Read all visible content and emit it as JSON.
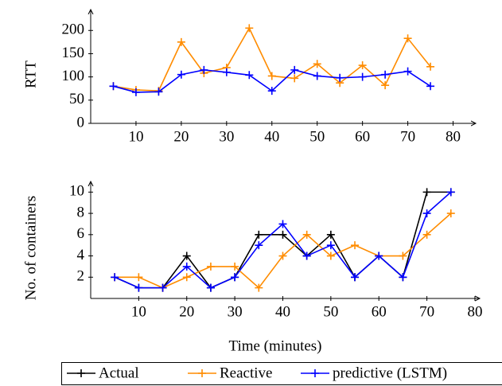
{
  "chart_data": [
    {
      "type": "line",
      "ylabel": "RTT",
      "x": [
        5,
        10,
        15,
        20,
        25,
        30,
        35,
        40,
        45,
        50,
        55,
        60,
        65,
        70,
        75
      ],
      "series": [
        {
          "name": "Reactive",
          "color": "#ff8c00",
          "values": [
            80,
            72,
            70,
            175,
            108,
            120,
            205,
            102,
            97,
            128,
            87,
            125,
            82,
            183,
            122
          ]
        },
        {
          "name": "predictive (LSTM)",
          "color": "#0000ff",
          "values": [
            80,
            67,
            68,
            105,
            115,
            110,
            104,
            70,
            115,
            102,
            98,
            100,
            105,
            112,
            80
          ]
        }
      ],
      "xlim": [
        0,
        85
      ],
      "ylim": [
        0,
        245
      ],
      "xticks": [
        10,
        20,
        30,
        40,
        50,
        60,
        70,
        80
      ],
      "yticks": [
        0,
        50,
        100,
        150,
        200
      ]
    },
    {
      "type": "line",
      "ylabel": "No. of containers",
      "xlabel": "Time (minutes)",
      "x": [
        5,
        10,
        15,
        20,
        25,
        30,
        35,
        40,
        45,
        50,
        55,
        60,
        65,
        70,
        75
      ],
      "series": [
        {
          "name": "Actual",
          "color": "#000000",
          "values": [
            2,
            1,
            1,
            4,
            1,
            2,
            6,
            6,
            4,
            6,
            2,
            4,
            2,
            10,
            10
          ]
        },
        {
          "name": "Reactive",
          "color": "#ff8c00",
          "values": [
            2,
            2,
            1,
            2,
            3,
            3,
            1,
            4,
            6,
            4,
            5,
            4,
            4,
            6,
            8
          ]
        },
        {
          "name": "predictive (LSTM)",
          "color": "#0000ff",
          "values": [
            2,
            1,
            1,
            3,
            1,
            2,
            5,
            7,
            4,
            5,
            2,
            4,
            2,
            8,
            10
          ]
        }
      ],
      "xlim": [
        0,
        81
      ],
      "ylim": [
        0,
        11
      ],
      "xticks": [
        10,
        20,
        30,
        40,
        50,
        60,
        70,
        80
      ],
      "yticks": [
        2,
        4,
        6,
        8,
        10
      ],
      "legend": "bottom"
    }
  ]
}
